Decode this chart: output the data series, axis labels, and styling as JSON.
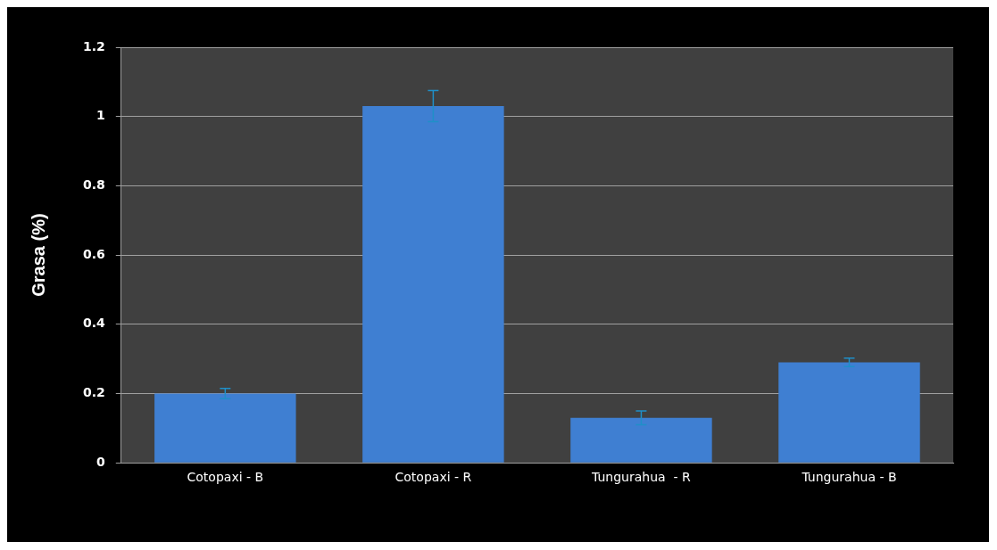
{
  "chart_data": {
    "type": "bar",
    "ylabel": "Grasa (%)",
    "categories": [
      "Cotopaxi - B",
      "Cotopaxi - R",
      "Tungurahua  - R",
      "Tungurahua - B"
    ],
    "values": [
      0.2,
      1.03,
      0.13,
      0.29
    ],
    "errors": [
      0.015,
      0.045,
      0.02,
      0.012
    ],
    "color": "#3f7fd2",
    "ylim": [
      0,
      1.2
    ],
    "yticks": [
      0,
      0.2,
      0.4,
      0.6,
      0.8,
      1,
      1.2
    ],
    "grid": "y"
  }
}
